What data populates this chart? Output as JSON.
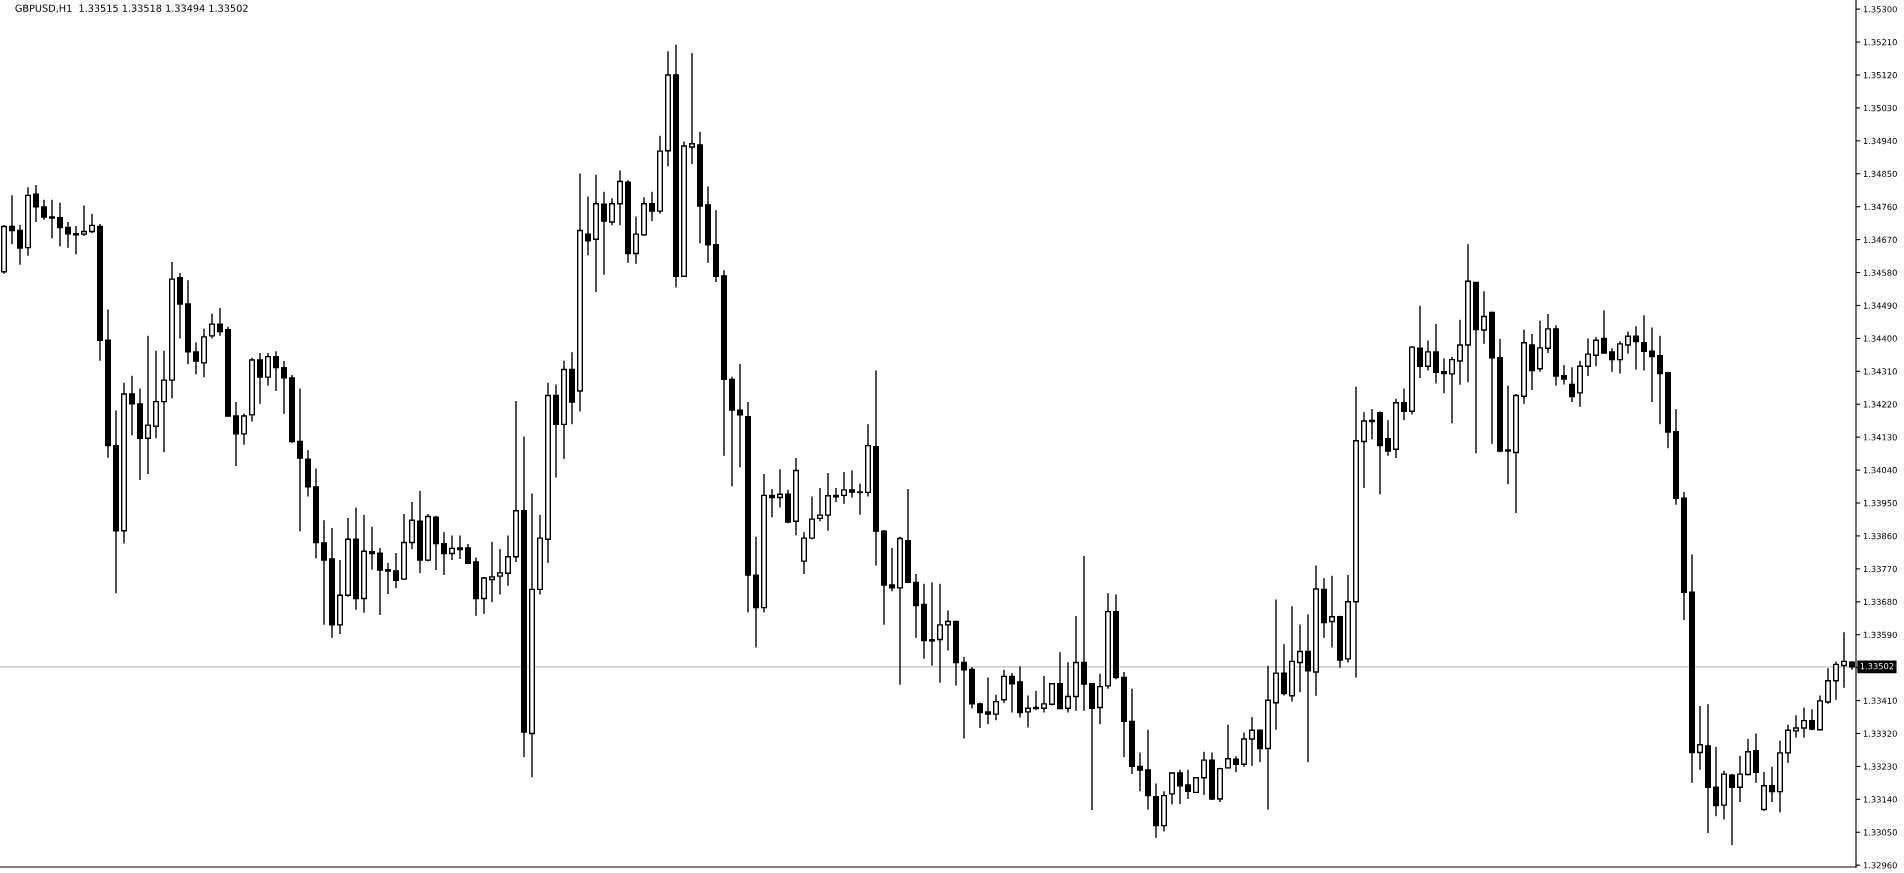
{
  "chart_data": {
    "type": "candlestick",
    "title": "GBPUSD,H1  1.33515 1.33518 1.33494 1.33502",
    "color": "#000000",
    "categories": [
      null,
      null,
      null,
      null,
      null,
      null,
      null,
      null,
      null,
      null,
      null,
      null,
      null,
      null,
      null,
      null,
      null,
      null,
      null,
      null,
      null,
      null,
      null,
      null,
      null,
      null,
      null,
      null,
      null,
      null,
      null,
      null,
      null,
      null,
      null,
      null,
      null,
      null,
      null,
      null,
      null,
      null,
      null,
      null,
      null,
      null,
      null,
      null,
      null,
      null,
      null,
      null,
      null,
      null,
      null,
      null,
      null,
      null,
      null,
      null,
      null,
      null,
      null,
      null,
      null,
      null,
      null,
      null,
      null,
      null,
      null,
      null,
      null,
      null,
      null,
      null,
      null,
      null,
      null,
      null,
      null,
      null,
      null,
      null,
      null,
      null,
      null,
      null,
      null,
      null,
      null,
      null,
      null,
      null,
      null,
      null,
      null,
      null,
      null,
      null,
      null,
      null,
      null,
      null,
      null,
      null,
      null,
      null,
      null,
      null,
      null,
      null,
      null,
      null,
      null,
      null,
      null,
      null,
      null,
      null,
      null,
      null,
      null,
      null,
      null,
      null,
      null,
      null,
      null,
      null,
      null,
      null,
      null,
      null,
      null,
      null,
      null,
      null,
      null,
      null,
      null,
      null,
      null,
      null,
      null,
      null,
      null,
      null,
      null,
      null,
      null,
      null,
      null,
      null,
      null,
      null,
      null,
      null,
      null,
      null,
      null,
      null,
      null,
      null,
      null,
      null,
      null,
      null,
      null,
      null,
      null,
      null,
      null,
      null,
      null,
      null,
      null,
      null,
      null,
      null,
      null,
      null,
      null,
      null,
      null,
      null,
      null,
      null,
      null,
      null,
      null,
      null,
      null,
      null,
      null,
      null,
      null,
      null,
      null,
      null,
      null,
      null,
      null,
      null,
      null,
      null,
      null,
      null,
      null,
      null,
      null,
      null,
      null,
      null,
      null,
      null,
      null,
      null,
      null,
      null,
      null,
      null,
      null,
      null,
      null,
      null,
      null,
      null,
      null,
      null,
      null,
      null
    ],
    "ohlc": [
      [
        1.34582,
        1.3471,
        1.34577,
        1.34706
      ],
      [
        1.34706,
        1.34791,
        1.34657,
        1.34695
      ],
      [
        1.34695,
        1.3471,
        1.34601,
        1.34647
      ],
      [
        1.34648,
        1.34813,
        1.34626,
        1.34791
      ],
      [
        1.34794,
        1.34819,
        1.34718,
        1.3476
      ],
      [
        1.34759,
        1.34779,
        1.34724,
        1.34732
      ],
      [
        1.34732,
        1.34779,
        1.34673,
        1.34729
      ],
      [
        1.3473,
        1.34771,
        1.34651,
        1.34703
      ],
      [
        1.34703,
        1.34718,
        1.34648,
        1.34686
      ],
      [
        1.34686,
        1.34707,
        1.34629,
        1.34683
      ],
      [
        1.34685,
        1.34763,
        1.3468,
        1.34692
      ],
      [
        1.34692,
        1.34741,
        1.34688,
        1.34709
      ],
      [
        1.34706,
        1.34713,
        1.34339,
        1.34395
      ],
      [
        1.34395,
        1.34479,
        1.34074,
        1.34107
      ],
      [
        1.34107,
        1.34203,
        1.33703,
        1.33874
      ],
      [
        1.33874,
        1.34279,
        1.33839,
        1.34248
      ],
      [
        1.34248,
        1.34298,
        1.34135,
        1.34221
      ],
      [
        1.34221,
        1.34263,
        1.34013,
        1.34127
      ],
      [
        1.34127,
        1.34407,
        1.34029,
        1.34163
      ],
      [
        1.3416,
        1.34366,
        1.34127,
        1.34227
      ],
      [
        1.34227,
        1.34366,
        1.34089,
        1.34286
      ],
      [
        1.34286,
        1.34609,
        1.34236,
        1.34562
      ],
      [
        1.34566,
        1.34579,
        1.344,
        1.34494
      ],
      [
        1.34494,
        1.34559,
        1.34329,
        1.34363
      ],
      [
        1.34363,
        1.34389,
        1.34301,
        1.34338
      ],
      [
        1.34333,
        1.34426,
        1.34294,
        1.34404
      ],
      [
        1.34407,
        1.34468,
        1.344,
        1.34439
      ],
      [
        1.34439,
        1.34483,
        1.34407,
        1.34419
      ],
      [
        1.34424,
        1.34432,
        1.34185,
        1.34188
      ],
      [
        1.34188,
        1.34226,
        1.34051,
        1.34139
      ],
      [
        1.34139,
        1.34195,
        1.34109,
        1.34188
      ],
      [
        1.34191,
        1.34347,
        1.34173,
        1.34341
      ],
      [
        1.34341,
        1.3436,
        1.34221,
        1.34294
      ],
      [
        1.34294,
        1.3436,
        1.34271,
        1.3435
      ],
      [
        1.3435,
        1.34365,
        1.34256,
        1.3432
      ],
      [
        1.3432,
        1.34338,
        1.34194,
        1.34292
      ],
      [
        1.34292,
        1.343,
        1.34115,
        1.34118
      ],
      [
        1.34118,
        1.34263,
        1.33873,
        1.34073
      ],
      [
        1.3407,
        1.34094,
        1.33968,
        1.33994
      ],
      [
        1.33994,
        1.34044,
        1.33798,
        1.33842
      ],
      [
        1.33841,
        1.33903,
        1.33617,
        1.33794
      ],
      [
        1.33797,
        1.33882,
        1.33582,
        1.33617
      ],
      [
        1.33617,
        1.33794,
        1.33592,
        1.33698
      ],
      [
        1.33698,
        1.33909,
        1.33694,
        1.33851
      ],
      [
        1.33851,
        1.33938,
        1.33658,
        1.33689
      ],
      [
        1.33689,
        1.33917,
        1.3365,
        1.33818
      ],
      [
        1.33817,
        1.33885,
        1.33768,
        1.33812
      ],
      [
        1.33813,
        1.33827,
        1.33644,
        1.33767
      ],
      [
        1.33768,
        1.33786,
        1.33701,
        1.33764
      ],
      [
        1.33764,
        1.33813,
        1.33717,
        1.33739
      ],
      [
        1.33742,
        1.3392,
        1.33741,
        1.33842
      ],
      [
        1.33842,
        1.33953,
        1.33824,
        1.33903
      ],
      [
        1.339,
        1.33983,
        1.33759,
        1.33794
      ],
      [
        1.33794,
        1.3392,
        1.33791,
        1.33913
      ],
      [
        1.33911,
        1.33915,
        1.33767,
        1.33839
      ],
      [
        1.33839,
        1.3387,
        1.33753,
        1.33812
      ],
      [
        1.33812,
        1.33861,
        1.33794,
        1.33826
      ],
      [
        1.33827,
        1.33861,
        1.33797,
        1.33823
      ],
      [
        1.33827,
        1.33838,
        1.33783,
        1.33785
      ],
      [
        1.33789,
        1.33801,
        1.33642,
        1.33689
      ],
      [
        1.33689,
        1.33748,
        1.33647,
        1.33745
      ],
      [
        1.33741,
        1.33844,
        1.33679,
        1.33748
      ],
      [
        1.3375,
        1.33824,
        1.337,
        1.33759
      ],
      [
        1.33758,
        1.33861,
        1.33724,
        1.33803
      ],
      [
        1.33803,
        1.34229,
        1.33789,
        1.33929
      ],
      [
        1.33929,
        1.34132,
        1.33256,
        1.33324
      ],
      [
        1.3332,
        1.33976,
        1.332,
        1.33714
      ],
      [
        1.33714,
        1.33917,
        1.337,
        1.33854
      ],
      [
        1.33851,
        1.34279,
        1.33786,
        1.34244
      ],
      [
        1.34244,
        1.34274,
        1.3402,
        1.34165
      ],
      [
        1.34165,
        1.34339,
        1.3407,
        1.34315
      ],
      [
        1.34315,
        1.34362,
        1.34165,
        1.34226
      ],
      [
        1.34256,
        1.34851,
        1.342,
        1.34695
      ],
      [
        1.34685,
        1.34788,
        1.34627,
        1.34667
      ],
      [
        1.34671,
        1.34847,
        1.34527,
        1.34768
      ],
      [
        1.34767,
        1.34801,
        1.34574,
        1.34721
      ],
      [
        1.34718,
        1.34783,
        1.34709,
        1.34768
      ],
      [
        1.34768,
        1.34859,
        1.34709,
        1.34829
      ],
      [
        1.34827,
        1.34832,
        1.34607,
        1.34632
      ],
      [
        1.34632,
        1.34733,
        1.34604,
        1.34685
      ],
      [
        1.34683,
        1.34786,
        1.3468,
        1.34768
      ],
      [
        1.34768,
        1.34801,
        1.34721,
        1.34748
      ],
      [
        1.34748,
        1.34954,
        1.34741,
        1.34912
      ],
      [
        1.34913,
        1.35185,
        1.3487,
        1.3512
      ],
      [
        1.3512,
        1.35203,
        1.34539,
        1.3457
      ],
      [
        1.3457,
        1.34938,
        1.34568,
        1.34926
      ],
      [
        1.34923,
        1.3518,
        1.34877,
        1.34932
      ],
      [
        1.34929,
        1.34965,
        1.3466,
        1.34762
      ],
      [
        1.34765,
        1.34815,
        1.34607,
        1.34656
      ],
      [
        1.34656,
        1.3475,
        1.34554,
        1.3457
      ],
      [
        1.34571,
        1.34586,
        1.34079,
        1.34288
      ],
      [
        1.34288,
        1.34295,
        1.33995,
        1.34204
      ],
      [
        1.34204,
        1.3433,
        1.34048,
        1.34191
      ],
      [
        1.34186,
        1.34226,
        1.33651,
        1.33753
      ],
      [
        1.33753,
        1.33858,
        1.33555,
        1.33664
      ],
      [
        1.33664,
        1.34029,
        1.33651,
        1.33971
      ],
      [
        1.33971,
        1.33988,
        1.33911,
        1.33965
      ],
      [
        1.33965,
        1.34042,
        1.33938,
        1.33974
      ],
      [
        1.33974,
        1.33986,
        1.33895,
        1.33898
      ],
      [
        1.339,
        1.34073,
        1.33862,
        1.34039
      ],
      [
        1.33791,
        1.3387,
        1.33756,
        1.33854
      ],
      [
        1.33854,
        1.33968,
        1.33851,
        1.33906
      ],
      [
        1.33908,
        1.33991,
        1.339,
        1.33917
      ],
      [
        1.33917,
        1.34032,
        1.33874,
        1.3397
      ],
      [
        1.33967,
        1.33991,
        1.33953,
        1.33971
      ],
      [
        1.33971,
        1.34035,
        1.33948,
        1.33986
      ],
      [
        1.33986,
        1.34039,
        1.33965,
        1.3398
      ],
      [
        1.3398,
        1.34003,
        1.33918,
        1.33979
      ],
      [
        1.33979,
        1.34165,
        1.33968,
        1.34107
      ],
      [
        1.34104,
        1.34312,
        1.33779,
        1.33873
      ],
      [
        1.33873,
        1.33876,
        1.33617,
        1.33726
      ],
      [
        1.33726,
        1.33827,
        1.33709,
        1.33718
      ],
      [
        1.33718,
        1.33858,
        1.33453,
        1.33853
      ],
      [
        1.33847,
        1.33988,
        1.33733,
        1.33733
      ],
      [
        1.33733,
        1.33756,
        1.33582,
        1.3367
      ],
      [
        1.33673,
        1.33729,
        1.33524,
        1.33574
      ],
      [
        1.33576,
        1.33733,
        1.33506,
        1.33573
      ],
      [
        1.33577,
        1.33729,
        1.33459,
        1.33617
      ],
      [
        1.33617,
        1.33656,
        1.33547,
        1.33626
      ],
      [
        1.33626,
        1.33627,
        1.33451,
        1.33514
      ],
      [
        1.33514,
        1.33529,
        1.33306,
        1.33494
      ],
      [
        1.33495,
        1.33501,
        1.33388,
        1.33401
      ],
      [
        1.33401,
        1.33404,
        1.33335,
        1.33377
      ],
      [
        1.33379,
        1.33473,
        1.33345,
        1.33373
      ],
      [
        1.33373,
        1.33426,
        1.33356,
        1.33407
      ],
      [
        1.33412,
        1.33494,
        1.33403,
        1.33476
      ],
      [
        1.33476,
        1.33485,
        1.33377,
        1.33456
      ],
      [
        1.33461,
        1.33503,
        1.33364,
        1.33377
      ],
      [
        1.33379,
        1.33424,
        1.33336,
        1.33389
      ],
      [
        1.33391,
        1.33436,
        1.33385,
        1.33388
      ],
      [
        1.33389,
        1.33477,
        1.33377,
        1.33401
      ],
      [
        1.334,
        1.33458,
        1.33397,
        1.33456
      ],
      [
        1.33456,
        1.33542,
        1.33386,
        1.33388
      ],
      [
        1.33389,
        1.33515,
        1.33377,
        1.33421
      ],
      [
        1.33421,
        1.33641,
        1.33382,
        1.33514
      ],
      [
        1.33514,
        1.33805,
        1.33382,
        1.33455
      ],
      [
        1.33456,
        1.33458,
        1.33111,
        1.33389
      ],
      [
        1.33391,
        1.33483,
        1.33345,
        1.33448
      ],
      [
        1.3345,
        1.33703,
        1.33442,
        1.33653
      ],
      [
        1.33653,
        1.337,
        1.33468,
        1.33473
      ],
      [
        1.33473,
        1.33488,
        1.33256,
        1.33353
      ],
      [
        1.33353,
        1.33442,
        1.33209,
        1.3323
      ],
      [
        1.3323,
        1.33268,
        1.33162,
        1.3322
      ],
      [
        1.3322,
        1.3333,
        1.33112,
        1.3315
      ],
      [
        1.33147,
        1.33183,
        1.33035,
        1.33068
      ],
      [
        1.33068,
        1.33162,
        1.33052,
        1.3315
      ],
      [
        1.33155,
        1.33214,
        1.33126,
        1.33212
      ],
      [
        1.33212,
        1.33221,
        1.33127,
        1.33177
      ],
      [
        1.33179,
        1.33221,
        1.33141,
        1.33162
      ],
      [
        1.33159,
        1.33199,
        1.33158,
        1.33199
      ],
      [
        1.33199,
        1.3327,
        1.33152,
        1.33247
      ],
      [
        1.33247,
        1.33268,
        1.33138,
        1.33141
      ],
      [
        1.33141,
        1.33226,
        1.33133,
        1.33224
      ],
      [
        1.33226,
        1.33344,
        1.33224,
        1.33251
      ],
      [
        1.3325,
        1.33258,
        1.33214,
        1.33236
      ],
      [
        1.33236,
        1.33323,
        1.33229,
        1.33305
      ],
      [
        1.33305,
        1.33365,
        1.33232,
        1.33329
      ],
      [
        1.33329,
        1.3333,
        1.33241,
        1.33279
      ],
      [
        1.33279,
        1.33505,
        1.33112,
        1.33411
      ],
      [
        1.33404,
        1.33686,
        1.3333,
        1.33485
      ],
      [
        1.33485,
        1.33564,
        1.33424,
        1.33429
      ],
      [
        1.33423,
        1.33668,
        1.33407,
        1.33517
      ],
      [
        1.33514,
        1.33618,
        1.33433,
        1.33544
      ],
      [
        1.33544,
        1.33645,
        1.33241,
        1.33491
      ],
      [
        1.33488,
        1.33779,
        1.33423,
        1.33715
      ],
      [
        1.33714,
        1.33744,
        1.33582,
        1.33623
      ],
      [
        1.33626,
        1.33751,
        1.33555,
        1.33639
      ],
      [
        1.33639,
        1.33642,
        1.335,
        1.33521
      ],
      [
        1.33524,
        1.33753,
        1.33514,
        1.3368
      ],
      [
        1.3368,
        1.34268,
        1.33473,
        1.3412
      ],
      [
        1.34118,
        1.34198,
        1.33991,
        1.34174
      ],
      [
        1.34173,
        1.34207,
        1.34124,
        1.34176
      ],
      [
        1.34197,
        1.342,
        1.33973,
        1.34107
      ],
      [
        1.34126,
        1.34176,
        1.34079,
        1.34092
      ],
      [
        1.34097,
        1.34235,
        1.34073,
        1.34224
      ],
      [
        1.34224,
        1.34263,
        1.34176,
        1.34201
      ],
      [
        1.34201,
        1.34379,
        1.34192,
        1.34376
      ],
      [
        1.34373,
        1.34489,
        1.34292,
        1.34324
      ],
      [
        1.34324,
        1.34394,
        1.34312,
        1.34363
      ],
      [
        1.34363,
        1.34439,
        1.34277,
        1.34307
      ],
      [
        1.34309,
        1.34345,
        1.3425,
        1.34304
      ],
      [
        1.34303,
        1.3435,
        1.34168,
        1.34342
      ],
      [
        1.34338,
        1.34451,
        1.34273,
        1.34382
      ],
      [
        1.34382,
        1.34657,
        1.3428,
        1.34556
      ],
      [
        1.34553,
        1.34554,
        1.34086,
        1.34424
      ],
      [
        1.34423,
        1.34529,
        1.34385,
        1.3446
      ],
      [
        1.34471,
        1.34473,
        1.34112,
        1.34347
      ],
      [
        1.34347,
        1.34398,
        1.34089,
        1.34092
      ],
      [
        1.34095,
        1.34271,
        1.34001,
        1.34092
      ],
      [
        1.34088,
        1.34248,
        1.33923,
        1.34244
      ],
      [
        1.34242,
        1.34424,
        1.34221,
        1.34388
      ],
      [
        1.34382,
        1.34412,
        1.34259,
        1.34312
      ],
      [
        1.34317,
        1.34448,
        1.34309,
        1.34374
      ],
      [
        1.34373,
        1.34467,
        1.3436,
        1.34426
      ],
      [
        1.34426,
        1.34436,
        1.34271,
        1.34297
      ],
      [
        1.34298,
        1.34327,
        1.34274,
        1.34289
      ],
      [
        1.34274,
        1.34321,
        1.34226,
        1.34241
      ],
      [
        1.34251,
        1.34339,
        1.34213,
        1.34324
      ],
      [
        1.34324,
        1.344,
        1.34297,
        1.34357
      ],
      [
        1.34354,
        1.34404,
        1.34324,
        1.34395
      ],
      [
        1.344,
        1.34476,
        1.34359,
        1.3436
      ],
      [
        1.34363,
        1.34373,
        1.34309,
        1.34342
      ],
      [
        1.34342,
        1.34392,
        1.34304,
        1.34385
      ],
      [
        1.34382,
        1.34419,
        1.34359,
        1.34406
      ],
      [
        1.34406,
        1.34433,
        1.34315,
        1.34391
      ],
      [
        1.34388,
        1.34463,
        1.34312,
        1.34365
      ],
      [
        1.34365,
        1.3443,
        1.34226,
        1.3435
      ],
      [
        1.34353,
        1.34407,
        1.34165,
        1.34304
      ],
      [
        1.34306,
        1.34309,
        1.341,
        1.34144
      ],
      [
        1.34145,
        1.34206,
        1.33945,
        1.33963
      ],
      [
        1.33963,
        1.3398,
        1.3363,
        1.33706
      ],
      [
        1.33706,
        1.33809,
        1.33185,
        1.33268
      ],
      [
        1.33268,
        1.33395,
        1.33221,
        1.33289
      ],
      [
        1.33286,
        1.334,
        1.33048,
        1.33173
      ],
      [
        1.33173,
        1.33283,
        1.33094,
        1.33123
      ],
      [
        1.33124,
        1.33218,
        1.33085,
        1.33209
      ],
      [
        1.33206,
        1.33209,
        1.33015,
        1.33173
      ],
      [
        1.33173,
        1.33259,
        1.33133,
        1.33209
      ],
      [
        1.33208,
        1.33305,
        1.33206,
        1.3327
      ],
      [
        1.33273,
        1.3332,
        1.33185,
        1.33214
      ],
      [
        1.33112,
        1.33215,
        1.33109,
        1.33177
      ],
      [
        1.33177,
        1.33229,
        1.33133,
        1.33161
      ],
      [
        1.33161,
        1.333,
        1.33104,
        1.33267
      ],
      [
        1.33267,
        1.33344,
        1.33239,
        1.33329
      ],
      [
        1.33327,
        1.3337,
        1.33309,
        1.33335
      ],
      [
        1.33335,
        1.33391,
        1.33309,
        1.33355
      ],
      [
        1.33355,
        1.33386,
        1.33329,
        1.33332
      ],
      [
        1.3333,
        1.33424,
        1.33329,
        1.33409
      ],
      [
        1.33406,
        1.33498,
        1.33401,
        1.33464
      ],
      [
        1.33464,
        1.33517,
        1.33412,
        1.33509
      ],
      [
        1.33506,
        1.33597,
        1.33445,
        1.33517
      ],
      [
        1.33515,
        1.33518,
        1.33494,
        1.33502
      ]
    ],
    "ylim": [
      1.32955,
      1.35325
    ],
    "yticks": [
      {
        "value": 1.3296,
        "label": "1.32960"
      },
      {
        "value": 1.3305,
        "label": "1.33050"
      },
      {
        "value": 1.3314,
        "label": "1.33140"
      },
      {
        "value": 1.3323,
        "label": "1.33230"
      },
      {
        "value": 1.3332,
        "label": "1.33320"
      },
      {
        "value": 1.3341,
        "label": "1.33410"
      },
      {
        "value": 1.335,
        "label": null
      },
      {
        "value": 1.3359,
        "label": "1.33590"
      },
      {
        "value": 1.3368,
        "label": "1.33680"
      },
      {
        "value": 1.3377,
        "label": "1.33770"
      },
      {
        "value": 1.3386,
        "label": "1.33860"
      },
      {
        "value": 1.3395,
        "label": "1.33950"
      },
      {
        "value": 1.3404,
        "label": "1.34040"
      },
      {
        "value": 1.3413,
        "label": "1.34130"
      },
      {
        "value": 1.3422,
        "label": "1.34220"
      },
      {
        "value": 1.3431,
        "label": "1.34310"
      },
      {
        "value": 1.344,
        "label": "1.34400"
      },
      {
        "value": 1.3449,
        "label": "1.34490"
      },
      {
        "value": 1.3458,
        "label": "1.34580"
      },
      {
        "value": 1.3467,
        "label": "1.34670"
      },
      {
        "value": 1.3476,
        "label": "1.34760"
      },
      {
        "value": 1.3485,
        "label": "1.34850"
      },
      {
        "value": 1.3494,
        "label": "1.34940"
      },
      {
        "value": 1.3503,
        "label": "1.35030"
      },
      {
        "value": 1.3512,
        "label": "1.35120"
      },
      {
        "value": 1.3521,
        "label": "1.35210"
      },
      {
        "value": 1.353,
        "label": "1.35300"
      }
    ],
    "ref_lines": [
      {
        "axis": "y",
        "value": 1.33502,
        "label": "1.33502",
        "color": "#c0c0c0"
      }
    ]
  }
}
